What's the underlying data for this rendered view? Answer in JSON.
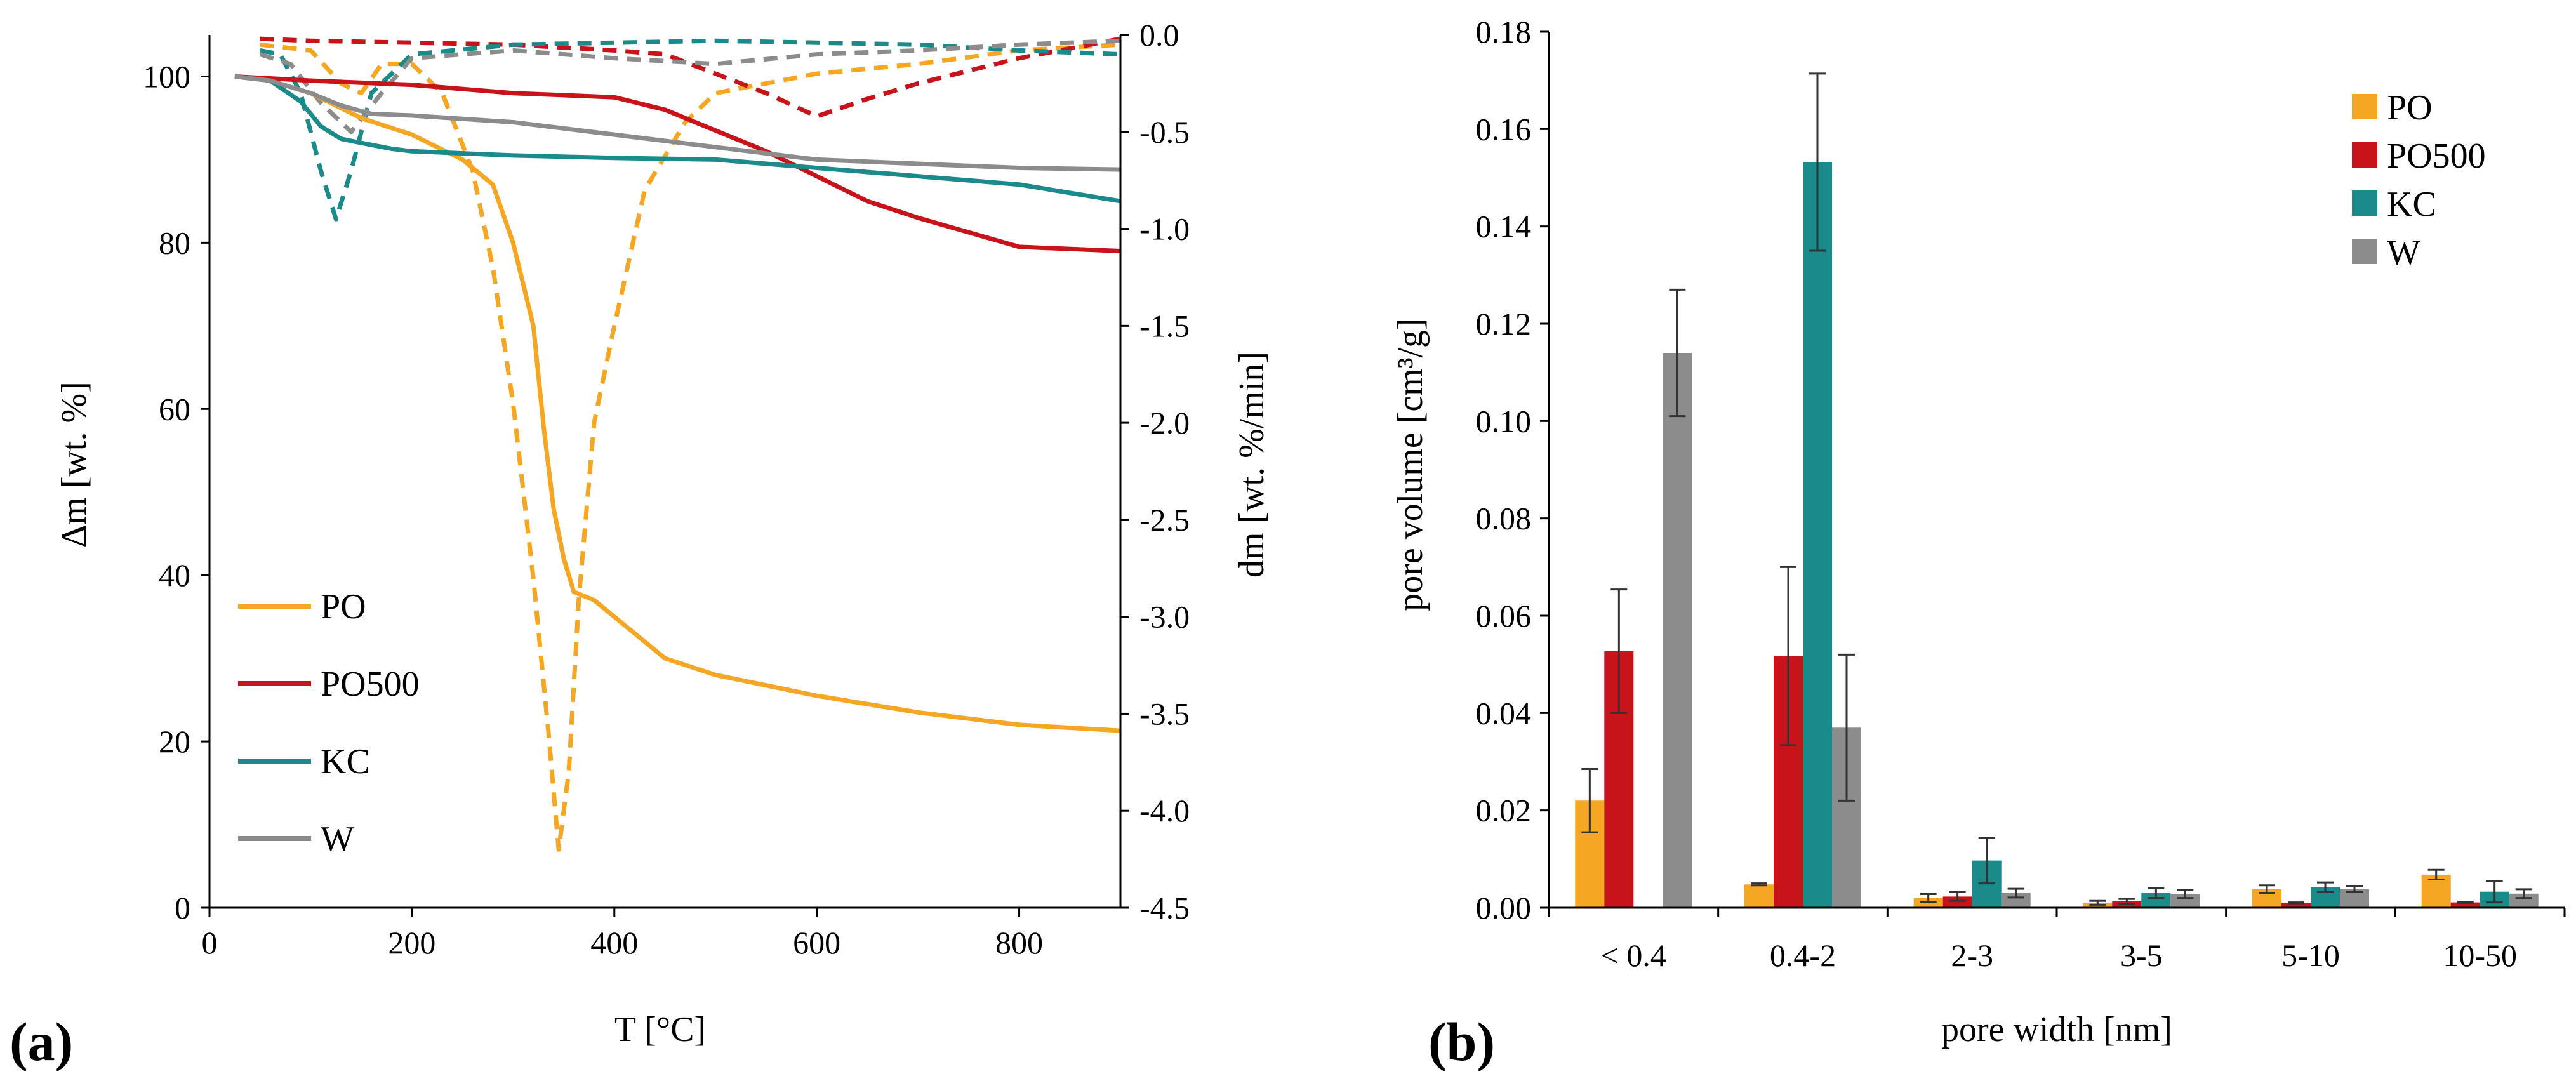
{
  "colors": {
    "PO": "#F5A623",
    "PO500": "#C8131A",
    "KC": "#1A8A8A",
    "W": "#8C8C8C",
    "axis": "#000000",
    "errorbar": "#333333"
  },
  "chart_data": [
    {
      "panel": "(a)",
      "type": "line",
      "xlabel": "T [°C]",
      "ylabel": "Δm [wt. %]",
      "y2label": "dm [wt. %/min]",
      "xlim": [
        0,
        900
      ],
      "ylim": [
        0,
        105
      ],
      "y2lim": [
        -4.5,
        0
      ],
      "x_ticks": [
        0,
        200,
        400,
        600,
        800
      ],
      "y_ticks": [
        0,
        20,
        40,
        60,
        80,
        100
      ],
      "y2_ticks": [
        "0.0",
        "-0.5",
        "-1.0",
        "-1.5",
        "-2.0",
        "-2.5",
        "-3.0",
        "-3.5",
        "-4.0",
        "-4.5"
      ],
      "grid": false,
      "legend_position": "bottom-left",
      "legend": [
        "PO",
        "PO500",
        "KC",
        "W"
      ],
      "mass_loss": [
        {
          "name": "PO",
          "x": [
            25,
            60,
            100,
            150,
            200,
            250,
            280,
            300,
            320,
            330,
            340,
            350,
            360,
            380,
            400,
            450,
            500,
            600,
            700,
            800,
            900
          ],
          "y": [
            100,
            99.5,
            98,
            95,
            93,
            90,
            87,
            80,
            70,
            58,
            48,
            42,
            38,
            37,
            35,
            30,
            28,
            25.5,
            23.5,
            22,
            21.3
          ]
        },
        {
          "name": "PO500",
          "x": [
            25,
            100,
            200,
            300,
            400,
            450,
            500,
            550,
            600,
            650,
            700,
            800,
            900
          ],
          "y": [
            100,
            99.5,
            99,
            98,
            97.5,
            96,
            93.5,
            91,
            88,
            85,
            83,
            79.5,
            79
          ]
        },
        {
          "name": "KC",
          "x": [
            25,
            60,
            90,
            110,
            130,
            150,
            180,
            200,
            300,
            400,
            500,
            600,
            700,
            800,
            900
          ],
          "y": [
            100,
            99.5,
            97,
            94,
            92.5,
            92,
            91.3,
            91,
            90.5,
            90.2,
            90,
            89,
            88,
            87,
            85
          ]
        },
        {
          "name": "W",
          "x": [
            25,
            60,
            100,
            130,
            160,
            200,
            300,
            400,
            500,
            600,
            700,
            800,
            900
          ],
          "y": [
            100,
            99.5,
            98,
            96.5,
            95.5,
            95.3,
            94.5,
            93,
            91.5,
            90,
            89.5,
            89,
            88.8
          ]
        }
      ],
      "dtg": [
        {
          "name": "PO",
          "x": [
            50,
            100,
            130,
            150,
            170,
            200,
            230,
            260,
            280,
            300,
            320,
            335,
            345,
            355,
            365,
            380,
            400,
            430,
            470,
            500,
            600,
            700,
            800,
            900
          ],
          "y": [
            -0.05,
            -0.08,
            -0.25,
            -0.3,
            -0.15,
            -0.15,
            -0.3,
            -0.7,
            -1.2,
            -1.9,
            -2.8,
            -3.6,
            -4.2,
            -3.8,
            -2.9,
            -2.0,
            -1.5,
            -0.8,
            -0.45,
            -0.3,
            -0.2,
            -0.15,
            -0.08,
            -0.05
          ]
        },
        {
          "name": "PO500",
          "x": [
            50,
            100,
            200,
            300,
            400,
            450,
            500,
            550,
            600,
            650,
            700,
            800,
            900
          ],
          "y": [
            -0.02,
            -0.03,
            -0.04,
            -0.05,
            -0.08,
            -0.1,
            -0.2,
            -0.3,
            -0.42,
            -0.33,
            -0.25,
            -0.12,
            -0.02
          ]
        },
        {
          "name": "KC",
          "x": [
            50,
            70,
            90,
            110,
            125,
            140,
            160,
            200,
            300,
            500,
            700,
            800,
            900
          ],
          "y": [
            -0.08,
            -0.1,
            -0.3,
            -0.7,
            -0.95,
            -0.7,
            -0.3,
            -0.1,
            -0.05,
            -0.03,
            -0.05,
            -0.08,
            -0.1
          ]
        },
        {
          "name": "W",
          "x": [
            50,
            80,
            110,
            140,
            170,
            200,
            300,
            400,
            500,
            600,
            700,
            800,
            900
          ],
          "y": [
            -0.1,
            -0.15,
            -0.35,
            -0.5,
            -0.3,
            -0.12,
            -0.08,
            -0.12,
            -0.15,
            -0.1,
            -0.08,
            -0.05,
            -0.03
          ]
        }
      ]
    },
    {
      "panel": "(b)",
      "type": "bar",
      "xlabel": "pore width [nm]",
      "ylabel": "pore volume [cm³/g]",
      "ylim": [
        0,
        0.18
      ],
      "y_ticks": [
        "0.00",
        "0.02",
        "0.04",
        "0.06",
        "0.08",
        "0.10",
        "0.12",
        "0.14",
        "0.16",
        "0.18"
      ],
      "grid": false,
      "legend_position": "top-right",
      "categories": [
        "< 0.4",
        "0.4-2",
        "2-3",
        "3-5",
        "5-10",
        "10-50"
      ],
      "series": [
        {
          "name": "PO",
          "values": [
            0.022,
            0.0048,
            0.002,
            0.001,
            0.0038,
            0.0068
          ],
          "errors": [
            0.0065,
            0.0002,
            0.0008,
            0.0004,
            0.0008,
            0.001
          ]
        },
        {
          "name": "PO500",
          "values": [
            0.0527,
            0.0517,
            0.0023,
            0.0013,
            0.001,
            0.0011
          ],
          "errors": [
            0.0127,
            0.0183,
            0.0009,
            0.0005,
            0.0001,
            0.0001
          ]
        },
        {
          "name": "KC",
          "values": [
            0,
            0.1532,
            0.0097,
            0.003,
            0.0042,
            0.0033
          ],
          "errors": [
            0,
            0.0182,
            0.0047,
            0.001,
            0.001,
            0.0022
          ]
        },
        {
          "name": "W",
          "values": [
            0.114,
            0.037,
            0.003,
            0.0028,
            0.0038,
            0.0029
          ],
          "errors": [
            0.013,
            0.015,
            0.0009,
            0.0008,
            0.0006,
            0.0009
          ]
        }
      ]
    }
  ]
}
